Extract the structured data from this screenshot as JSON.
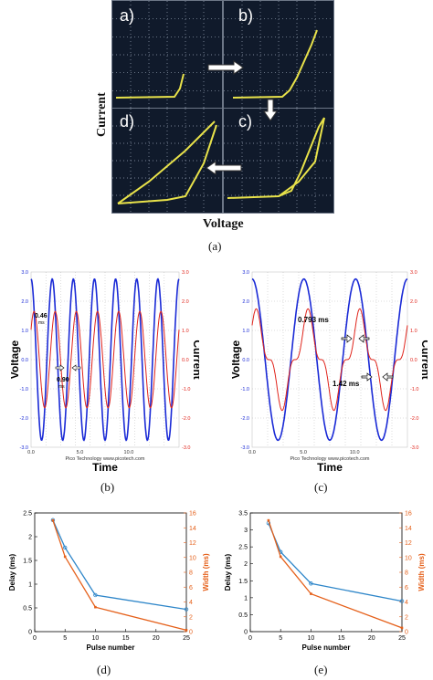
{
  "fig_a": {
    "panels": [
      "a)",
      "b)",
      "c)",
      "d)"
    ],
    "ylabel": "Current",
    "xlabel": "Voltage",
    "caption": "(a)"
  },
  "fig_b": {
    "ylabel_left": "Voltage",
    "ylabel_right": "Current",
    "xlabel": "Time",
    "footer": "Pico Technology  www.picotech.com",
    "ann1": "0.46",
    "ann1_unit": "ms",
    "ann2": "0.90",
    "ann2_unit": "ms",
    "caption": "(b)",
    "left_ticks": [
      "3.0",
      "2.0",
      "1.0",
      "0.0",
      "-1.0",
      "-2.0",
      "-3.0"
    ],
    "right_ticks": [
      "3.0",
      "2.0",
      "1.0",
      "0.0",
      "-1.0",
      "-2.0",
      "-3.0"
    ],
    "x_ticks": [
      "0.0",
      "5.0",
      "10.0"
    ]
  },
  "fig_c": {
    "ylabel_left": "Voltage",
    "ylabel_right": "Current",
    "xlabel": "Time",
    "footer": "Pico Technology  www.picotech.com",
    "ann1": "0.793 ms",
    "ann2": "1.42 ms",
    "caption": "(c)",
    "left_ticks": [
      "3.0",
      "2.0",
      "1.0",
      "0.0",
      "-1.0",
      "-2.0",
      "-3.0"
    ],
    "right_ticks": [
      "3.0",
      "2.0",
      "1.0",
      "0.0",
      "-1.0",
      "-2.0",
      "-3.0"
    ],
    "x_ticks": [
      "0.0",
      "5.0",
      "10.0"
    ]
  },
  "colors": {
    "voltage": "#1a2ad6",
    "current": "#e0241b",
    "delay": "#2e86c9",
    "width": "#e5601a",
    "trace": "#e8e24a"
  },
  "chart_data": [
    {
      "type": "line",
      "caption": "(d)",
      "xlabel": "Pulse number",
      "ylabel": "Delay (ms)",
      "ylabel_right": "Width (ms)",
      "x": [
        3,
        5,
        10,
        25
      ],
      "xlim": [
        0,
        25
      ],
      "xticks": [
        "0",
        "5",
        "10",
        "15",
        "20",
        "25"
      ],
      "ylim": [
        0,
        2.5
      ],
      "yticks": [
        "0",
        "0.5",
        "1",
        "1.5",
        "2",
        "2.5"
      ],
      "ylim_right": [
        0,
        16
      ],
      "yticks_right": [
        "0",
        "2",
        "4",
        "6",
        "8",
        "10",
        "12",
        "14",
        "16"
      ],
      "series": [
        {
          "axis": "left",
          "values": [
            2.35,
            1.77,
            0.77,
            0.47
          ]
        },
        {
          "axis": "right",
          "values": [
            15.0,
            10.1,
            3.3,
            0.2
          ]
        }
      ]
    },
    {
      "type": "line",
      "caption": "(e)",
      "xlabel": "Pulse number",
      "ylabel": "Delay (ms)",
      "ylabel_right": "Width (ms)",
      "x": [
        3,
        5,
        10,
        25
      ],
      "xlim": [
        0,
        25
      ],
      "xticks": [
        "0",
        "5",
        "10",
        "15",
        "20",
        "25"
      ],
      "ylim": [
        0,
        3.5
      ],
      "yticks": [
        "0",
        "0.5",
        "1",
        "1.5",
        "2",
        "2.5",
        "3",
        "3.5"
      ],
      "ylim_right": [
        0,
        16
      ],
      "yticks_right": [
        "0",
        "2",
        "4",
        "6",
        "8",
        "10",
        "12",
        "14",
        "16"
      ],
      "series": [
        {
          "axis": "left",
          "values": [
            3.2,
            2.35,
            1.42,
            0.9
          ]
        },
        {
          "axis": "right",
          "values": [
            15.0,
            10.1,
            5.1,
            0.5
          ]
        }
      ]
    }
  ]
}
